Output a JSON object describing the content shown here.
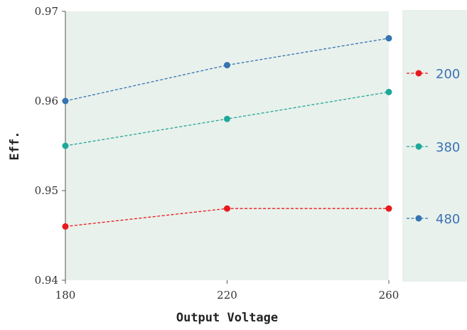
{
  "chart_data": {
    "type": "line",
    "xlabel": "Output Voltage",
    "ylabel": "Eff.",
    "x": [
      180,
      220,
      260
    ],
    "xticks": [
      "180",
      "220",
      "260"
    ],
    "ylim": [
      0.94,
      0.97
    ],
    "yticks": [
      "0.94",
      "0.95",
      "0.96",
      "0.97"
    ],
    "grid": false,
    "legend_position": "right",
    "background_color": "#e9f1ec",
    "series": [
      {
        "name": "200",
        "values": [
          0.946,
          0.948,
          0.948
        ],
        "color": "#e8191c"
      },
      {
        "name": "380",
        "values": [
          0.955,
          0.958,
          0.961
        ],
        "color": "#1fa89a"
      },
      {
        "name": "480",
        "values": [
          0.96,
          0.964,
          0.967
        ],
        "color": "#3474b3"
      }
    ]
  }
}
